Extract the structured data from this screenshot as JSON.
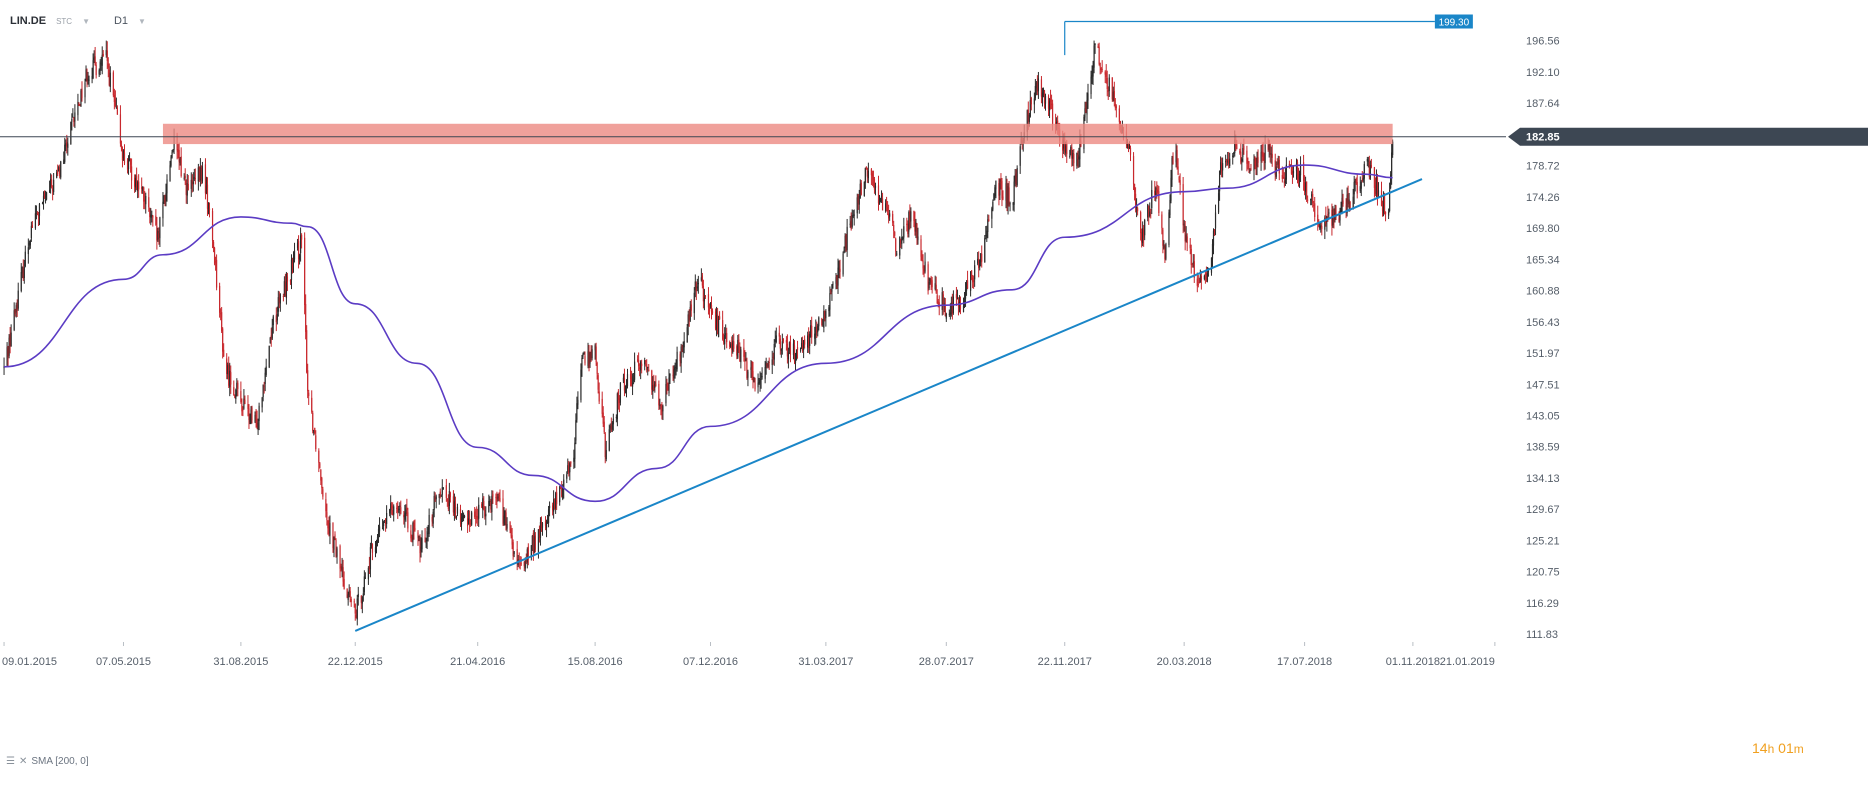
{
  "header": {
    "symbol": "LIN.DE",
    "instrument_type": "STC",
    "timeframe": "D1"
  },
  "indicator_legend": "SMA [200, 0]",
  "countdown": {
    "hours": "14",
    "hours_unit": "h",
    "minutes": "01",
    "minutes_unit": "m"
  },
  "colors": {
    "sma": "#5b3cc4",
    "trendline": "#1a86c8",
    "zone": "#ec8a82",
    "price_line": "#3d4753",
    "up_candle": "#2b2b2b",
    "down_candle": "#c8282d",
    "last_price_bg": "#3d4753",
    "high_marker_bg": "#1a86c8",
    "timer": "#f0a020"
  },
  "chart_data": {
    "type": "candlestick",
    "y_axis_ticks": [
      "196.56",
      "192.10",
      "187.64",
      "183.18",
      "178.72",
      "174.26",
      "169.80",
      "165.34",
      "160.88",
      "156.43",
      "151.97",
      "147.51",
      "143.05",
      "138.59",
      "134.13",
      "129.67",
      "125.21",
      "120.75",
      "116.29",
      "111.83"
    ],
    "x_axis_ticks": [
      "09.01.2015",
      "07.05.2015",
      "31.08.2015",
      "22.12.2015",
      "21.04.2016",
      "15.08.2016",
      "07.12.2016",
      "31.03.2017",
      "28.07.2017",
      "22.11.2017",
      "20.03.2018",
      "17.07.2018",
      "01.11.2018",
      "21.01.2019"
    ],
    "ylim": [
      111.0,
      199.8
    ],
    "last_price": {
      "label": "182.85",
      "value": 182.85
    },
    "high_marker": {
      "label": "199.30",
      "value": 199.3,
      "start_date": "22.11.2017",
      "end_date": "21.01.2019"
    },
    "resistance_zone": {
      "low": 181.8,
      "high": 184.7,
      "start_date": "15.06.2015",
      "end_date": "12.10.2018"
    },
    "trendline": [
      {
        "date": "22.12.2015",
        "value": 112.3
      },
      {
        "date": "10.11.2018",
        "value": 176.8
      }
    ],
    "sma_200": [
      {
        "date": "09.01.2015",
        "value": 150.0
      },
      {
        "date": "07.05.2015",
        "value": 162.5
      },
      {
        "date": "15.06.2015",
        "value": 166.0
      },
      {
        "date": "31.08.2015",
        "value": 171.4
      },
      {
        "date": "20.10.2015",
        "value": 170.5
      },
      {
        "date": "05.11.2015",
        "value": 170.0
      },
      {
        "date": "22.12.2015",
        "value": 159.0
      },
      {
        "date": "21.02.2016",
        "value": 150.5
      },
      {
        "date": "21.04.2016",
        "value": 138.5
      },
      {
        "date": "15.06.2016",
        "value": 134.5
      },
      {
        "date": "15.08.2016",
        "value": 130.8
      },
      {
        "date": "15.10.2016",
        "value": 135.5
      },
      {
        "date": "07.12.2016",
        "value": 141.5
      },
      {
        "date": "31.03.2017",
        "value": 150.5
      },
      {
        "date": "28.07.2017",
        "value": 158.8
      },
      {
        "date": "01.10.2017",
        "value": 161.0
      },
      {
        "date": "22.11.2017",
        "value": 168.5
      },
      {
        "date": "20.03.2018",
        "value": 175.0
      },
      {
        "date": "01.05.2018",
        "value": 175.5
      },
      {
        "date": "17.07.2018",
        "value": 178.8
      },
      {
        "date": "15.09.2018",
        "value": 177.5
      },
      {
        "date": "12.10.2018",
        "value": 177.0
      }
    ],
    "price_path": [
      {
        "date": "09.01.2015",
        "value": 149.8
      },
      {
        "date": "05.02.2015",
        "value": 170.0
      },
      {
        "date": "05.03.2015",
        "value": 178.0
      },
      {
        "date": "01.04.2015",
        "value": 192.0
      },
      {
        "date": "20.04.2015",
        "value": 194.0
      },
      {
        "date": "07.05.2015",
        "value": 180.0
      },
      {
        "date": "25.05.2015",
        "value": 175.0
      },
      {
        "date": "10.06.2015",
        "value": 168.0
      },
      {
        "date": "25.06.2015",
        "value": 182.0
      },
      {
        "date": "10.07.2015",
        "value": 175.0
      },
      {
        "date": "25.07.2015",
        "value": 178.0
      },
      {
        "date": "05.08.2015",
        "value": 166.0
      },
      {
        "date": "15.08.2015",
        "value": 150.0
      },
      {
        "date": "31.08.2015",
        "value": 145.0
      },
      {
        "date": "15.09.2015",
        "value": 141.5
      },
      {
        "date": "01.10.2015",
        "value": 156.0
      },
      {
        "date": "15.10.2015",
        "value": 162.0
      },
      {
        "date": "30.10.2015",
        "value": 168.0
      },
      {
        "date": "05.11.2015",
        "value": 147.0
      },
      {
        "date": "25.11.2015",
        "value": 128.0
      },
      {
        "date": "10.12.2015",
        "value": 120.0
      },
      {
        "date": "22.12.2015",
        "value": 114.5
      },
      {
        "date": "10.01.2016",
        "value": 125.0
      },
      {
        "date": "01.02.2016",
        "value": 131.0
      },
      {
        "date": "25.02.2016",
        "value": 124.0
      },
      {
        "date": "15.03.2016",
        "value": 133.0
      },
      {
        "date": "05.04.2016",
        "value": 128.0
      },
      {
        "date": "21.04.2016",
        "value": 129.0
      },
      {
        "date": "10.05.2016",
        "value": 132.0
      },
      {
        "date": "01.06.2016",
        "value": 121.0
      },
      {
        "date": "20.06.2016",
        "value": 126.0
      },
      {
        "date": "10.07.2016",
        "value": 131.5
      },
      {
        "date": "25.07.2016",
        "value": 138.0
      },
      {
        "date": "01.08.2016",
        "value": 151.0
      },
      {
        "date": "15.08.2016",
        "value": 152.0
      },
      {
        "date": "25.08.2016",
        "value": 138.0
      },
      {
        "date": "10.09.2016",
        "value": 147.0
      },
      {
        "date": "01.10.2016",
        "value": 151.0
      },
      {
        "date": "20.10.2016",
        "value": 145.0
      },
      {
        "date": "10.11.2016",
        "value": 153.0
      },
      {
        "date": "25.11.2016",
        "value": 163.0
      },
      {
        "date": "07.12.2016",
        "value": 157.0
      },
      {
        "date": "01.01.2017",
        "value": 153.0
      },
      {
        "date": "20.01.2017",
        "value": 147.5
      },
      {
        "date": "10.02.2017",
        "value": 153.0
      },
      {
        "date": "01.03.2017",
        "value": 152.0
      },
      {
        "date": "31.03.2017",
        "value": 157.0
      },
      {
        "date": "20.04.2017",
        "value": 168.0
      },
      {
        "date": "10.05.2017",
        "value": 178.0
      },
      {
        "date": "25.05.2017",
        "value": 174.0
      },
      {
        "date": "10.06.2017",
        "value": 167.0
      },
      {
        "date": "25.06.2017",
        "value": 172.0
      },
      {
        "date": "10.07.2017",
        "value": 162.0
      },
      {
        "date": "28.07.2017",
        "value": 158.5
      },
      {
        "date": "15.08.2017",
        "value": 160.0
      },
      {
        "date": "01.09.2017",
        "value": 166.0
      },
      {
        "date": "15.09.2017",
        "value": 176.0
      },
      {
        "date": "01.10.2017",
        "value": 174.0
      },
      {
        "date": "10.10.2017",
        "value": 182.0
      },
      {
        "date": "25.10.2017",
        "value": 191.0
      },
      {
        "date": "10.11.2017",
        "value": 186.0
      },
      {
        "date": "22.11.2017",
        "value": 181.0
      },
      {
        "date": "05.12.2017",
        "value": 179.0
      },
      {
        "date": "15.12.2017",
        "value": 190.0
      },
      {
        "date": "22.12.2017",
        "value": 195.5
      },
      {
        "date": "10.01.2018",
        "value": 188.0
      },
      {
        "date": "25.01.2018",
        "value": 180.0
      },
      {
        "date": "05.02.2018",
        "value": 168.0
      },
      {
        "date": "20.02.2018",
        "value": 176.0
      },
      {
        "date": "01.03.2018",
        "value": 166.0
      },
      {
        "date": "10.03.2018",
        "value": 182.0
      },
      {
        "date": "20.03.2018",
        "value": 170.0
      },
      {
        "date": "01.04.2018",
        "value": 161.5
      },
      {
        "date": "15.04.2018",
        "value": 164.0
      },
      {
        "date": "25.04.2018",
        "value": 178.0
      },
      {
        "date": "10.05.2018",
        "value": 181.5
      },
      {
        "date": "25.05.2018",
        "value": 178.0
      },
      {
        "date": "10.06.2018",
        "value": 181.0
      },
      {
        "date": "25.06.2018",
        "value": 177.0
      },
      {
        "date": "10.07.2018",
        "value": 178.5
      },
      {
        "date": "17.07.2018",
        "value": 176.0
      },
      {
        "date": "01.08.2018",
        "value": 170.5
      },
      {
        "date": "15.08.2018",
        "value": 171.5
      },
      {
        "date": "01.09.2018",
        "value": 174.0
      },
      {
        "date": "15.09.2018",
        "value": 179.0
      },
      {
        "date": "01.10.2018",
        "value": 174.0
      },
      {
        "date": "08.10.2018",
        "value": 172.0
      },
      {
        "date": "12.10.2018",
        "value": 182.85
      }
    ],
    "visible_range": {
      "start": "05.01.2015",
      "end": "01.02.2019"
    }
  }
}
